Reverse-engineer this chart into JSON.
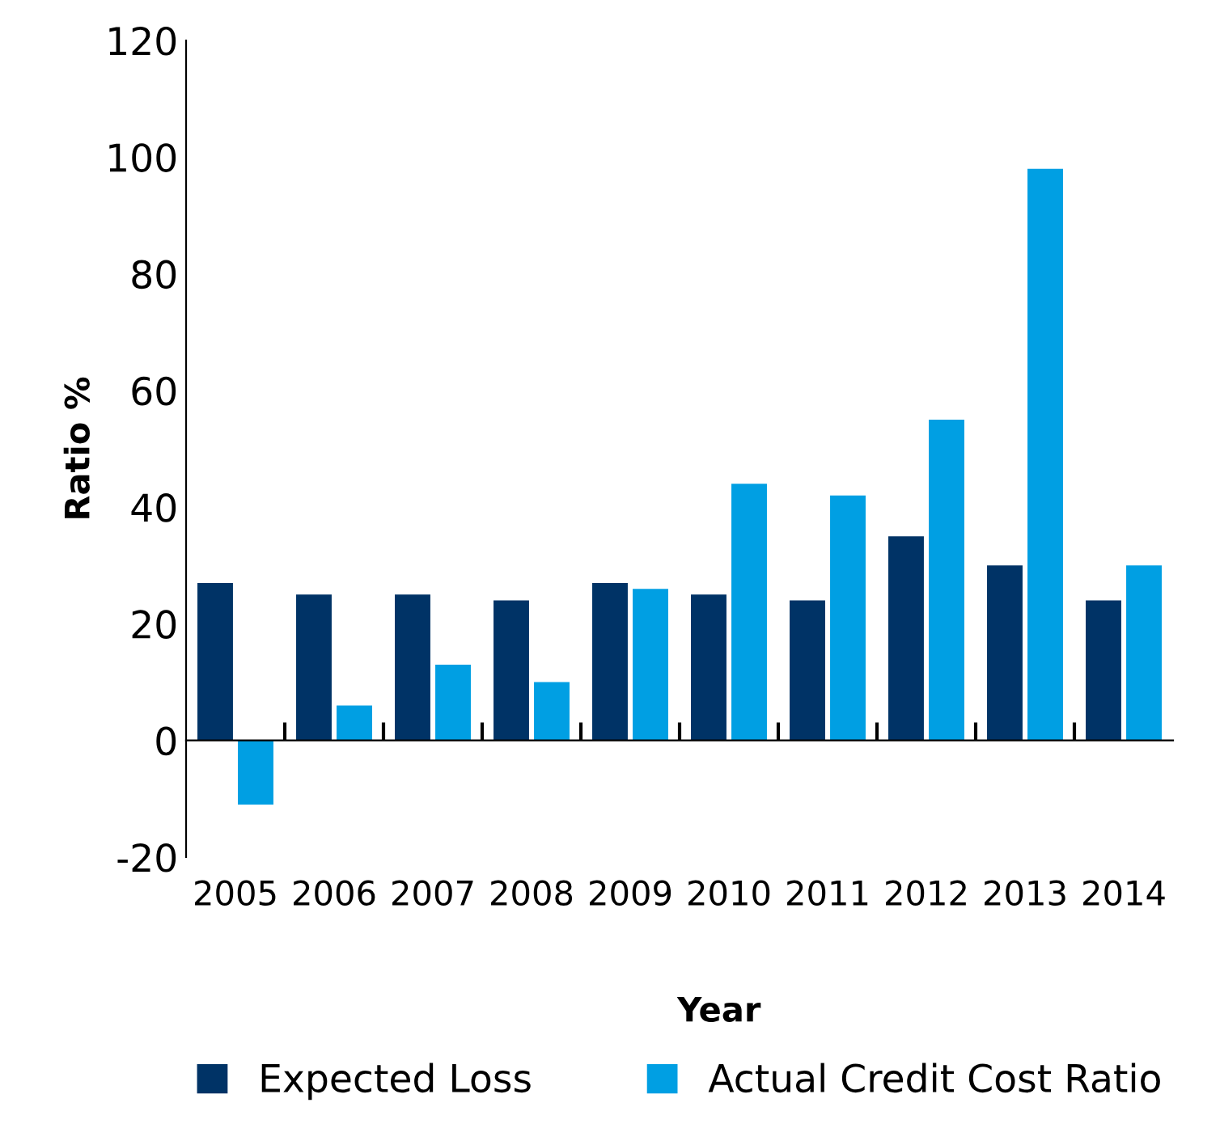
{
  "chart_data": {
    "type": "bar",
    "xlabel": "Year",
    "ylabel": "Ratio %",
    "categories": [
      "2005",
      "2006",
      "2007",
      "2008",
      "2009",
      "2010",
      "2011",
      "2012",
      "2013",
      "2014"
    ],
    "series": [
      {
        "name": "Expected Loss",
        "color": "#003366",
        "values": [
          27,
          25,
          25,
          24,
          27,
          25,
          24,
          35,
          30,
          24
        ]
      },
      {
        "name": "Actual Credit Cost Ratio",
        "color": "#009fe3",
        "values": [
          -11,
          6,
          13,
          10,
          26,
          44,
          42,
          55,
          98,
          30
        ]
      }
    ],
    "ylim": [
      -20,
      120
    ],
    "yticks": [
      -20,
      0,
      20,
      40,
      60,
      80,
      100,
      120
    ],
    "legend": "bottom"
  }
}
